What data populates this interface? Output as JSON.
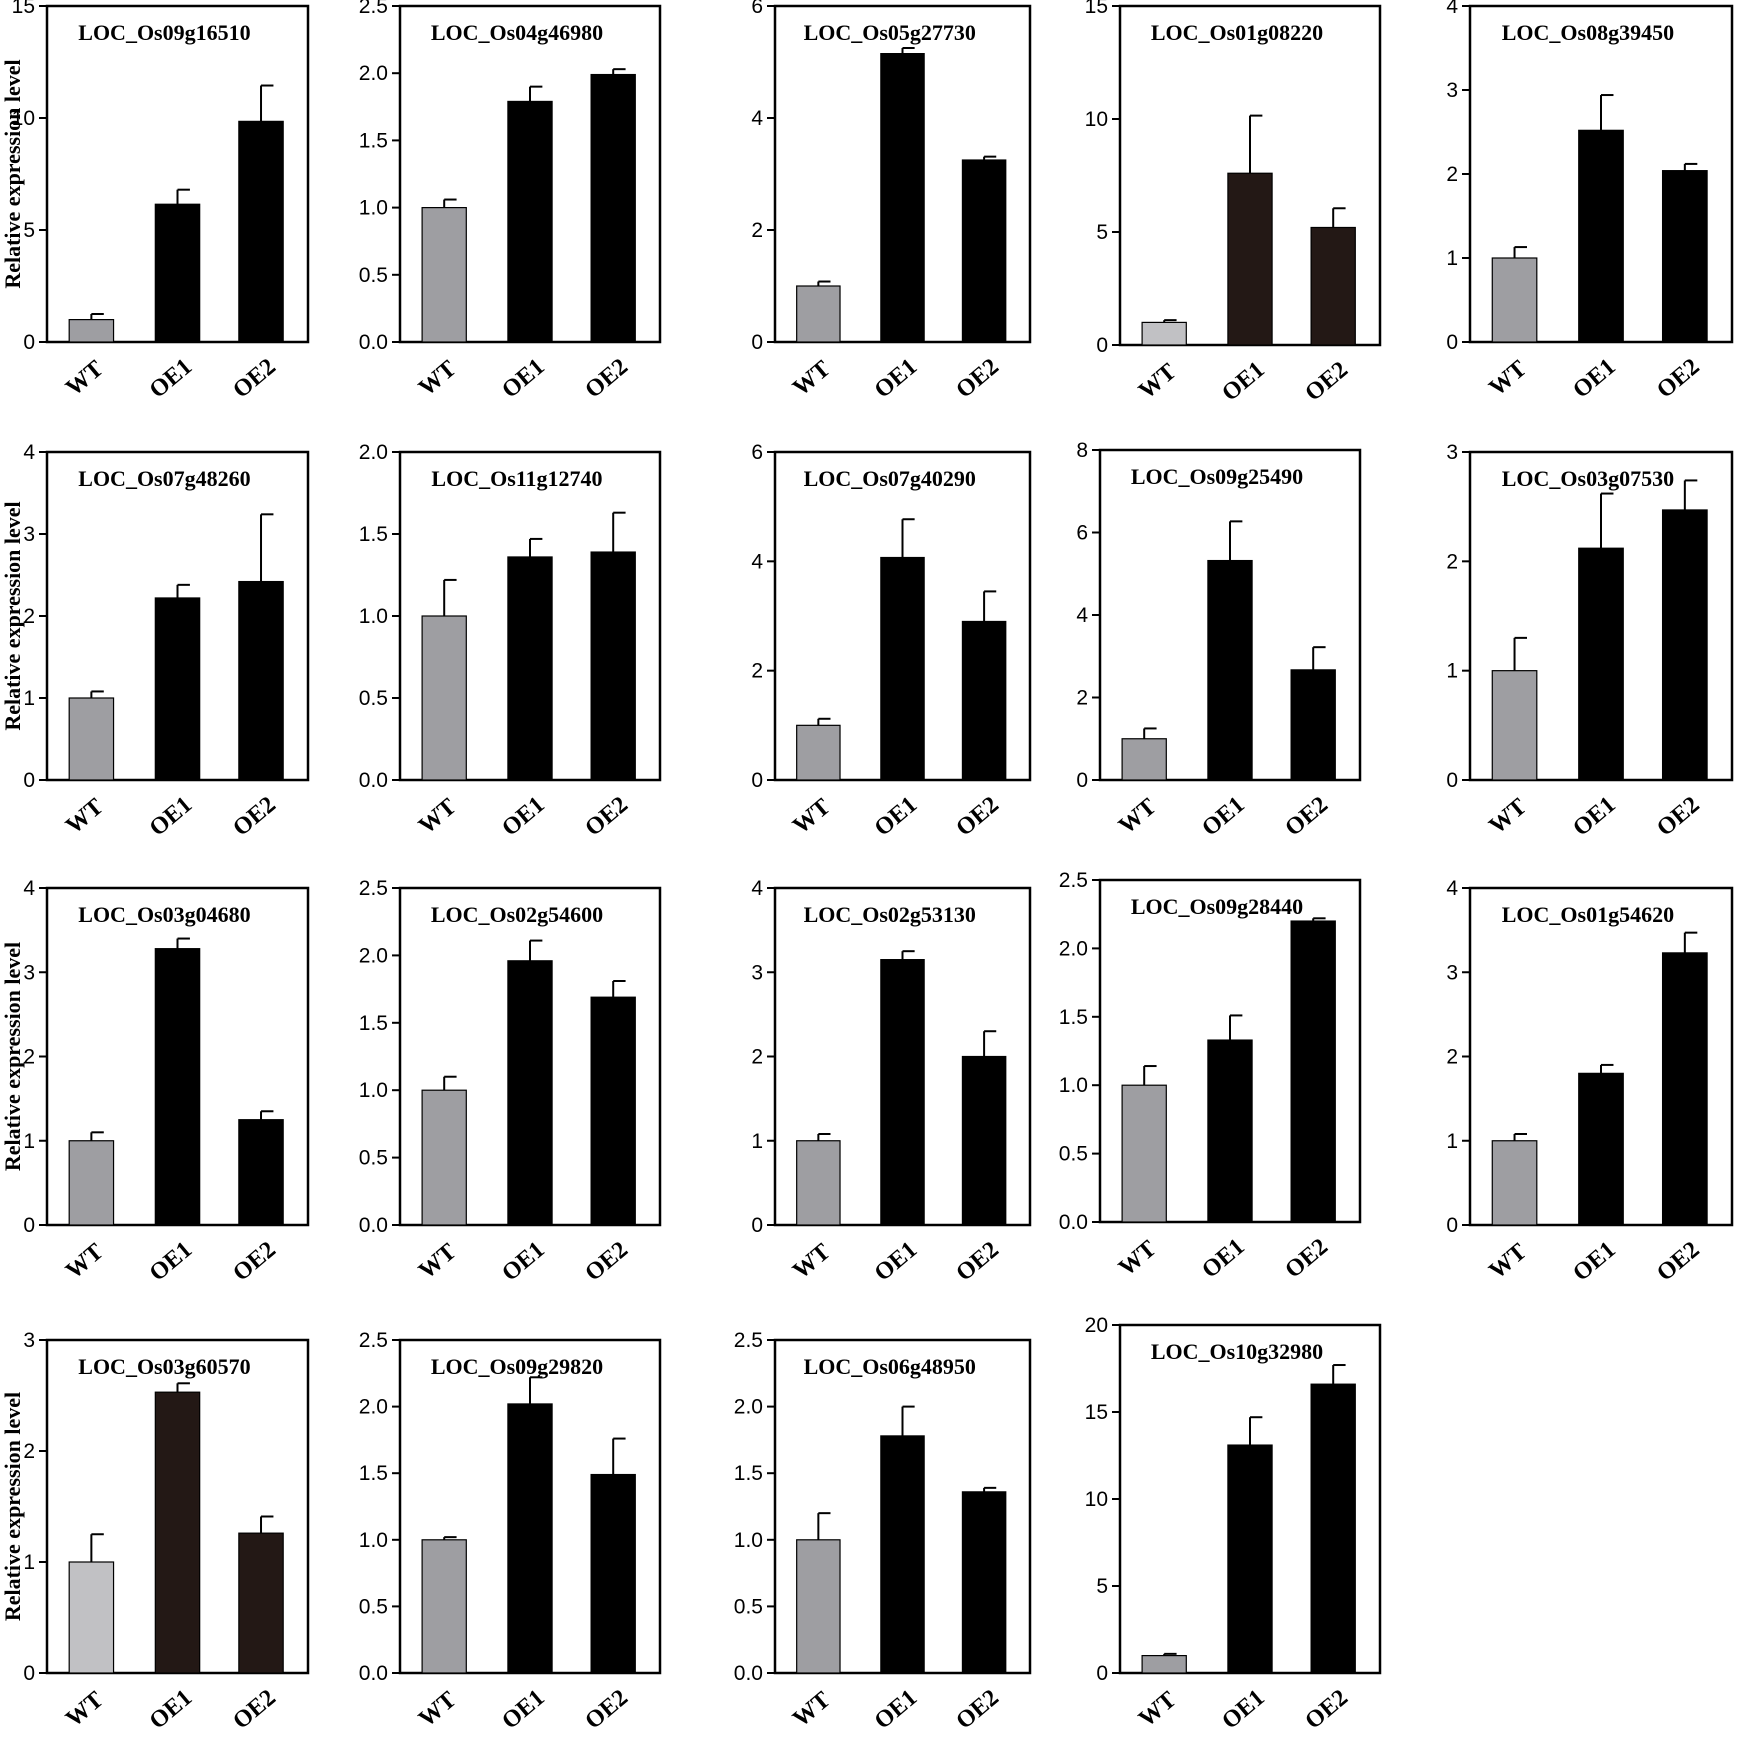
{
  "figure": {
    "ylabel": "Relative expression level",
    "colors": {
      "wt": "#9e9ea2",
      "wt_light": "#c1c1c4",
      "oe": "#000000",
      "oe_dark": "#231815",
      "frame": "#000000"
    }
  },
  "chart_data": [
    {
      "type": "bar",
      "title": "LOC_Os09g16510",
      "categories": [
        "WT",
        "OE1",
        "OE2"
      ],
      "values": [
        1.0,
        6.15,
        9.85
      ],
      "errors": [
        0.25,
        0.65,
        1.6
      ],
      "ylim": [
        0,
        15
      ],
      "yticks": [
        "0",
        "5",
        "10",
        "15"
      ],
      "ylabel": "Relative expression level"
    },
    {
      "type": "bar",
      "title": "LOC_Os04g46980",
      "categories": [
        "WT",
        "OE1",
        "OE2"
      ],
      "values": [
        1.0,
        1.79,
        1.99
      ],
      "errors": [
        0.06,
        0.11,
        0.04
      ],
      "ylim": [
        0,
        2.5
      ],
      "yticks": [
        "0.0",
        "0.5",
        "1.0",
        "1.5",
        "2.0",
        "2.5"
      ],
      "ylabel": ""
    },
    {
      "type": "bar",
      "title": "LOC_Os05g27730",
      "categories": [
        "WT",
        "OE1",
        "OE2"
      ],
      "values": [
        1.0,
        5.15,
        3.25
      ],
      "errors": [
        0.08,
        0.1,
        0.06
      ],
      "ylim": [
        0,
        6
      ],
      "yticks": [
        "0",
        "2",
        "4",
        "6"
      ],
      "ylabel": ""
    },
    {
      "type": "bar",
      "title": "LOC_Os01g08220",
      "categories": [
        "WT",
        "OE1",
        "OE2"
      ],
      "values": [
        1.0,
        7.6,
        5.2
      ],
      "errors": [
        0.1,
        2.55,
        0.85
      ],
      "ylim": [
        0,
        15
      ],
      "yticks": [
        "0",
        "5",
        "10",
        "15"
      ],
      "ylabel": ""
    },
    {
      "type": "bar",
      "title": "LOC_Os08g39450",
      "categories": [
        "WT",
        "OE1",
        "OE2"
      ],
      "values": [
        1.0,
        2.52,
        2.04
      ],
      "errors": [
        0.13,
        0.42,
        0.08
      ],
      "ylim": [
        0,
        4
      ],
      "yticks": [
        "0",
        "1",
        "2",
        "3",
        "4"
      ],
      "ylabel": ""
    },
    {
      "type": "bar",
      "title": "LOC_Os07g48260",
      "categories": [
        "WT",
        "OE1",
        "OE2"
      ],
      "values": [
        1.0,
        2.22,
        2.42
      ],
      "errors": [
        0.08,
        0.16,
        0.82
      ],
      "ylim": [
        0,
        4
      ],
      "yticks": [
        "0",
        "1",
        "2",
        "3",
        "4"
      ],
      "ylabel": "Relative expression level"
    },
    {
      "type": "bar",
      "title": "LOC_Os11g12740",
      "categories": [
        "WT",
        "OE1",
        "OE2"
      ],
      "values": [
        1.0,
        1.36,
        1.39
      ],
      "errors": [
        0.22,
        0.11,
        0.24
      ],
      "ylim": [
        0,
        2.0
      ],
      "yticks": [
        "0.0",
        "0.5",
        "1.0",
        "1.5",
        "2.0"
      ],
      "ylabel": ""
    },
    {
      "type": "bar",
      "title": "LOC_Os07g40290",
      "categories": [
        "WT",
        "OE1",
        "OE2"
      ],
      "values": [
        1.0,
        4.07,
        2.9
      ],
      "errors": [
        0.12,
        0.7,
        0.55
      ],
      "ylim": [
        0,
        6
      ],
      "yticks": [
        "0",
        "2",
        "4",
        "6"
      ],
      "ylabel": ""
    },
    {
      "type": "bar",
      "title": "LOC_Os09g25490",
      "categories": [
        "WT",
        "OE1",
        "OE2"
      ],
      "values": [
        1.0,
        5.32,
        2.67
      ],
      "errors": [
        0.25,
        0.95,
        0.55
      ],
      "ylim": [
        0,
        8
      ],
      "yticks": [
        "0",
        "2",
        "4",
        "6",
        "8"
      ],
      "ylabel": ""
    },
    {
      "type": "bar",
      "title": "LOC_Os03g07530",
      "categories": [
        "WT",
        "OE1",
        "OE2"
      ],
      "values": [
        1.0,
        2.12,
        2.47
      ],
      "errors": [
        0.3,
        0.5,
        0.27
      ],
      "ylim": [
        0,
        3
      ],
      "yticks": [
        "0",
        "1",
        "2",
        "3"
      ],
      "ylabel": ""
    },
    {
      "type": "bar",
      "title": "LOC_Os03g04680",
      "categories": [
        "WT",
        "OE1",
        "OE2"
      ],
      "values": [
        1.0,
        3.28,
        1.25
      ],
      "errors": [
        0.1,
        0.12,
        0.1
      ],
      "ylim": [
        0,
        4
      ],
      "yticks": [
        "0",
        "1",
        "2",
        "3",
        "4"
      ],
      "ylabel": "Relative expression level"
    },
    {
      "type": "bar",
      "title": "LOC_Os02g54600",
      "categories": [
        "WT",
        "OE1",
        "OE2"
      ],
      "values": [
        1.0,
        1.96,
        1.69
      ],
      "errors": [
        0.1,
        0.15,
        0.12
      ],
      "ylim": [
        0,
        2.5
      ],
      "yticks": [
        "0.0",
        "0.5",
        "1.0",
        "1.5",
        "2.0",
        "2.5"
      ],
      "ylabel": ""
    },
    {
      "type": "bar",
      "title": "LOC_Os02g53130",
      "categories": [
        "WT",
        "OE1",
        "OE2"
      ],
      "values": [
        1.0,
        3.15,
        2.0
      ],
      "errors": [
        0.08,
        0.1,
        0.3
      ],
      "ylim": [
        0,
        4
      ],
      "yticks": [
        "0",
        "1",
        "2",
        "3",
        "4"
      ],
      "ylabel": ""
    },
    {
      "type": "bar",
      "title": "LOC_Os09g28440",
      "categories": [
        "WT",
        "OE1",
        "OE2"
      ],
      "values": [
        1.0,
        1.33,
        2.2
      ],
      "errors": [
        0.14,
        0.18,
        0.02
      ],
      "ylim": [
        0,
        2.5
      ],
      "yticks": [
        "0.0",
        "0.5",
        "1.0",
        "1.5",
        "2.0",
        "2.5"
      ],
      "ylabel": ""
    },
    {
      "type": "bar",
      "title": "LOC_Os01g54620",
      "categories": [
        "WT",
        "OE1",
        "OE2"
      ],
      "values": [
        1.0,
        1.8,
        3.23
      ],
      "errors": [
        0.08,
        0.1,
        0.24
      ],
      "ylim": [
        0,
        4
      ],
      "yticks": [
        "0",
        "1",
        "2",
        "3",
        "4"
      ],
      "ylabel": ""
    },
    {
      "type": "bar",
      "title": "LOC_Os03g60570",
      "categories": [
        "WT",
        "OE1",
        "OE2"
      ],
      "values": [
        1.0,
        2.53,
        1.26
      ],
      "errors": [
        0.25,
        0.08,
        0.15
      ],
      "ylim": [
        0,
        3
      ],
      "yticks": [
        "0",
        "1",
        "2",
        "3"
      ],
      "ylabel": "Relative expression level"
    },
    {
      "type": "bar",
      "title": "LOC_Os09g29820",
      "categories": [
        "WT",
        "OE1",
        "OE2"
      ],
      "values": [
        1.0,
        2.02,
        1.49
      ],
      "errors": [
        0.02,
        0.2,
        0.27
      ],
      "ylim": [
        0,
        2.5
      ],
      "yticks": [
        "0.0",
        "0.5",
        "1.0",
        "1.5",
        "2.0",
        "2.5"
      ],
      "ylabel": ""
    },
    {
      "type": "bar",
      "title": "LOC_Os06g48950",
      "categories": [
        "WT",
        "OE1",
        "OE2"
      ],
      "values": [
        1.0,
        1.78,
        1.36
      ],
      "errors": [
        0.2,
        0.22,
        0.03
      ],
      "ylim": [
        0,
        2.5
      ],
      "yticks": [
        "0.0",
        "0.5",
        "1.0",
        "1.5",
        "2.0",
        "2.5"
      ],
      "ylabel": ""
    },
    {
      "type": "bar",
      "title": "LOC_Os10g32980",
      "categories": [
        "WT",
        "OE1",
        "OE2"
      ],
      "values": [
        1.0,
        13.1,
        16.6
      ],
      "errors": [
        0.1,
        1.6,
        1.1
      ],
      "ylim": [
        0,
        20
      ],
      "yticks": [
        "0",
        "5",
        "10",
        "15",
        "20"
      ],
      "ylabel": ""
    }
  ]
}
